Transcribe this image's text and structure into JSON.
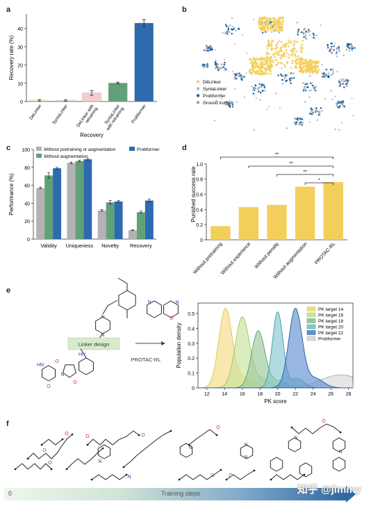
{
  "panels": {
    "a": "a",
    "b": "b",
    "c": "c",
    "d": "d",
    "e": "e",
    "f": "f"
  },
  "colors": {
    "gray": "#b3b3b3",
    "pink": "#f4cccc",
    "green": "#62a07a",
    "blue": "#2d6aae",
    "yellow": "#f2cf5b",
    "navy": "#1f5e9c",
    "lightblue": "#9fbad6",
    "midgray": "#a0a0a0"
  },
  "chart_data": [
    {
      "id": "a",
      "type": "bar",
      "categories": [
        "DeLinker",
        "SyntaLinker",
        "DeLinker with\nretraining",
        "SyntaLinker\nwith retraining",
        "Probformer"
      ],
      "values": [
        0.5,
        0.5,
        4.7,
        10.1,
        43.0
      ],
      "errors": [
        0.5,
        0.4,
        1.3,
        0.5,
        1.8
      ],
      "bar_colors": [
        "#f6c96e",
        "#c9b8d8",
        "#f4cccc",
        "#62a07a",
        "#2d6aae"
      ],
      "xlabel": "Recovery",
      "ylabel": "Recovery rate (%)",
      "ylim": [
        0,
        48
      ],
      "yticks": [
        0,
        10,
        20,
        30,
        40
      ]
    },
    {
      "id": "b",
      "type": "scatter",
      "legend": [
        "DeLinker",
        "SyntaLinker",
        "Probformer",
        "Ground truth"
      ],
      "legend_colors": [
        "#f2cf5b",
        "#9fbad6",
        "#1f5e9c",
        "#a0a0a0"
      ],
      "legend_position": "bottom-left"
    },
    {
      "id": "c",
      "type": "bar",
      "categories": [
        "Validity",
        "Uniqueness",
        "Novelty",
        "Recovery"
      ],
      "series": [
        {
          "name": "Without pretraining or augmentation",
          "values": [
            57,
            85,
            32,
            10
          ],
          "errors": [
            1,
            1,
            1,
            0.6
          ],
          "color": "#b3b3b3"
        },
        {
          "name": "Without augmentation",
          "values": [
            71,
            87,
            41,
            30
          ],
          "errors": [
            3,
            1,
            2,
            1.2
          ],
          "color": "#62a07a"
        },
        {
          "name": "Probformer",
          "values": [
            79,
            89,
            42,
            43
          ],
          "errors": [
            1,
            1,
            1,
            1.6
          ],
          "color": "#2d6aae"
        }
      ],
      "ylabel": "Performance (%)",
      "ylim": [
        0,
        100
      ],
      "yticks": [
        0,
        20,
        40,
        60,
        80,
        100
      ],
      "legend_position": "top"
    },
    {
      "id": "d",
      "type": "bar",
      "categories": [
        "Without pretraining",
        "Without experience",
        "Without penalty",
        "Without augmentation",
        "PROTAC-RL"
      ],
      "values": [
        0.18,
        0.43,
        0.46,
        0.7,
        0.76
      ],
      "color": "#f2cf5b",
      "ylabel": "Punished success rate",
      "ylim": [
        0,
        1.2
      ],
      "yticks": [
        0,
        0.2,
        0.4,
        0.6,
        0.8,
        1.0
      ],
      "significance": [
        {
          "from": 0,
          "to": 4,
          "label": "**"
        },
        {
          "from": 1,
          "to": 4,
          "label": "**"
        },
        {
          "from": 2,
          "to": 4,
          "label": "**"
        },
        {
          "from": 3,
          "to": 4,
          "label": "*"
        }
      ]
    },
    {
      "id": "e",
      "type": "area",
      "xlabel": "PK score",
      "ylabel": "Population density",
      "xlim": [
        11,
        28.5
      ],
      "ylim": [
        0,
        0.57
      ],
      "xticks": [
        12,
        14,
        16,
        18,
        20,
        22,
        24,
        26,
        28
      ],
      "yticks": [
        0,
        0.1,
        0.2,
        0.3,
        0.4,
        0.5
      ],
      "legend_position": "top-right",
      "series": [
        {
          "name": "PK target 14",
          "mean": 14.1,
          "sd": 0.75,
          "peak": 0.53,
          "color": "#f4dc86",
          "edge": "#e3c14a"
        },
        {
          "name": "PK target 16",
          "mean": 16.0,
          "sd": 0.8,
          "peak": 0.47,
          "color": "#c9e39a",
          "edge": "#98c25a"
        },
        {
          "name": "PK target 18",
          "mean": 17.8,
          "sd": 0.75,
          "peak": 0.38,
          "color": "#9bc79b",
          "edge": "#5b9a6a"
        },
        {
          "name": "PK target 20",
          "mean": 20.0,
          "sd": 0.6,
          "peak": 0.51,
          "color": "#86c7cf",
          "edge": "#3d9ca8"
        },
        {
          "name": "PK target 22",
          "mean": 22.0,
          "sd": 0.75,
          "peak": 0.53,
          "color": "#5f91cf",
          "edge": "#245a9e"
        },
        {
          "name": "Probformer",
          "mean": 27.0,
          "sd": 2.2,
          "peak": 0.08,
          "color": "#d9d9d9",
          "edge": "#aaaaaa"
        }
      ]
    }
  ],
  "diagram_e": {
    "box_label": "Linker design",
    "method_label": "PROTAC-RL"
  },
  "panel_f": {
    "axis_start": "0",
    "axis_label": "Training steps"
  },
  "watermark": "知乎 @jimmy"
}
